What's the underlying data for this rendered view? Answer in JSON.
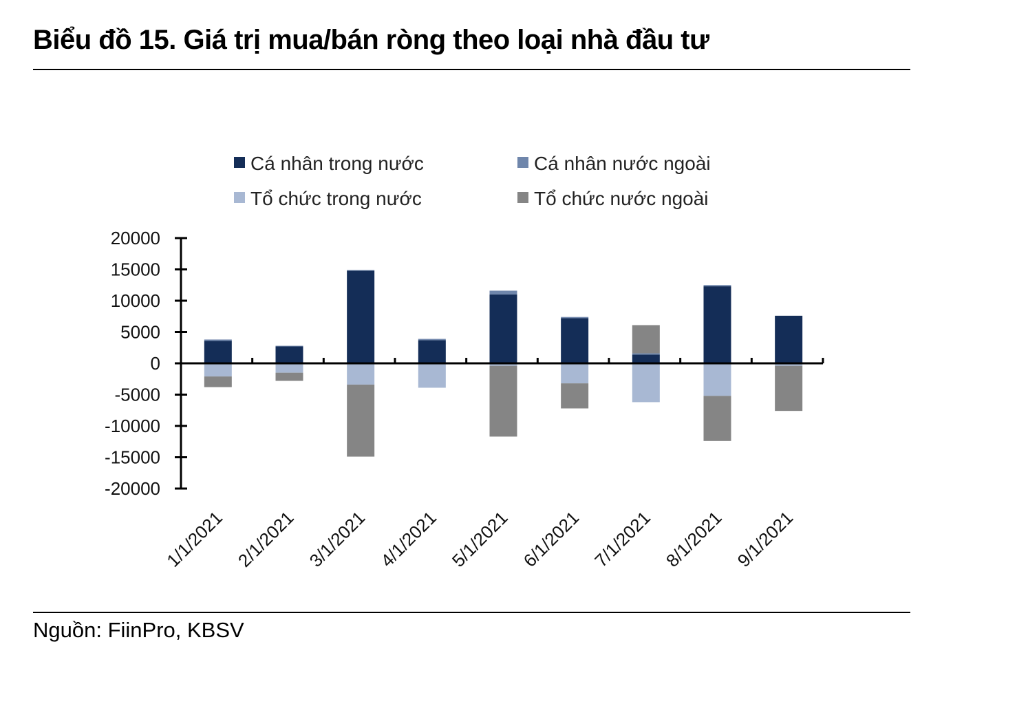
{
  "header": {
    "title": "Biểu đồ 15. Giá trị mua/bán ròng theo loại nhà đầu tư"
  },
  "footer": {
    "source": "Nguồn: FiinPro, KBSV"
  },
  "chart_data": {
    "type": "bar",
    "stacked": true,
    "categories": [
      "1/1/2021",
      "2/1/2021",
      "3/1/2021",
      "4/1/2021",
      "5/1/2021",
      "6/1/2021",
      "7/1/2021",
      "8/1/2021",
      "9/1/2021"
    ],
    "series": [
      {
        "name": "Cá nhân trong nước",
        "color": "#142d57",
        "values": [
          3600,
          2700,
          14800,
          3700,
          11000,
          7200,
          1400,
          12300,
          7600
        ]
      },
      {
        "name": "Cá nhân nước ngoài",
        "color": "#6f86ab",
        "values": [
          200,
          100,
          100,
          200,
          600,
          200,
          200,
          200,
          0
        ]
      },
      {
        "name": "Tổ chức trong nước",
        "color": "#a8b8d3",
        "values": [
          -2100,
          -1500,
          -3400,
          -3900,
          -400,
          -3200,
          -6200,
          -5200,
          -400
        ]
      },
      {
        "name": "Tổ chức nước ngoài",
        "color": "#858585",
        "values": [
          -1700,
          -1300,
          -11500,
          0,
          -11300,
          -4000,
          4500,
          -7200,
          -7200
        ]
      }
    ],
    "yticks": [
      20000,
      15000,
      10000,
      5000,
      0,
      -5000,
      -10000,
      -15000,
      -20000
    ],
    "ylim": [
      -20000,
      20000
    ],
    "grid": false,
    "legend_position": "top"
  }
}
